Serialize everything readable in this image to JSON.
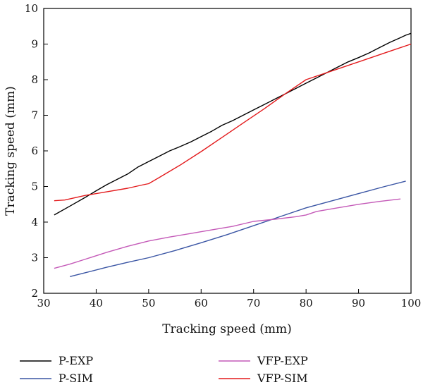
{
  "chart_data": {
    "type": "line",
    "title": "",
    "xlabel": "Tracking speed (mm)",
    "ylabel": "Tracking speed (mm)",
    "xlim": [
      30,
      100
    ],
    "ylim": [
      2,
      10
    ],
    "xticks": [
      30,
      40,
      50,
      60,
      70,
      80,
      90,
      100
    ],
    "yticks": [
      2,
      3,
      4,
      5,
      6,
      7,
      8,
      9,
      10
    ],
    "grid": false,
    "legend_position": "bottom",
    "series": [
      {
        "name": "P-EXP",
        "color": "#000000",
        "x": [
          32,
          35,
          38,
          40,
          42,
          44,
          46,
          48,
          50,
          52,
          54,
          56,
          58,
          60,
          62,
          64,
          66,
          68,
          70,
          72,
          74,
          76,
          78,
          80,
          82,
          84,
          86,
          88,
          90,
          92,
          94,
          96,
          98,
          99,
          100
        ],
        "y": [
          4.2,
          4.45,
          4.7,
          4.88,
          5.05,
          5.2,
          5.35,
          5.55,
          5.7,
          5.85,
          6.0,
          6.12,
          6.25,
          6.4,
          6.55,
          6.72,
          6.85,
          7.0,
          7.15,
          7.3,
          7.45,
          7.6,
          7.75,
          7.9,
          8.05,
          8.2,
          8.35,
          8.5,
          8.62,
          8.75,
          8.9,
          9.05,
          9.18,
          9.25,
          9.3
        ]
      },
      {
        "name": "P-SIM",
        "color": "#3a55a4",
        "x": [
          35,
          38,
          42,
          46,
          50,
          55,
          60,
          65,
          70,
          75,
          80,
          85,
          90,
          95,
          99
        ],
        "y": [
          2.47,
          2.58,
          2.73,
          2.87,
          3.0,
          3.2,
          3.42,
          3.65,
          3.9,
          4.15,
          4.4,
          4.6,
          4.8,
          5.0,
          5.15
        ]
      },
      {
        "name": "VFP-EXP",
        "color": "#c45ab8",
        "x": [
          32,
          35,
          38,
          42,
          46,
          50,
          54,
          58,
          62,
          66,
          70,
          74,
          78,
          80,
          82,
          86,
          90,
          94,
          98
        ],
        "y": [
          2.7,
          2.82,
          2.96,
          3.15,
          3.32,
          3.47,
          3.58,
          3.68,
          3.78,
          3.88,
          4.02,
          4.08,
          4.15,
          4.2,
          4.3,
          4.4,
          4.5,
          4.58,
          4.65
        ]
      },
      {
        "name": "VFP-SIM",
        "color": "#e31a1c",
        "x": [
          32,
          34,
          38,
          42,
          46,
          49,
          50,
          52,
          56,
          60,
          64,
          68,
          72,
          76,
          80,
          84,
          88,
          92,
          96,
          100
        ],
        "y": [
          4.6,
          4.62,
          4.75,
          4.85,
          4.95,
          5.05,
          5.08,
          5.25,
          5.6,
          5.98,
          6.38,
          6.78,
          7.18,
          7.6,
          8.0,
          8.2,
          8.4,
          8.6,
          8.8,
          9.0
        ]
      }
    ]
  }
}
